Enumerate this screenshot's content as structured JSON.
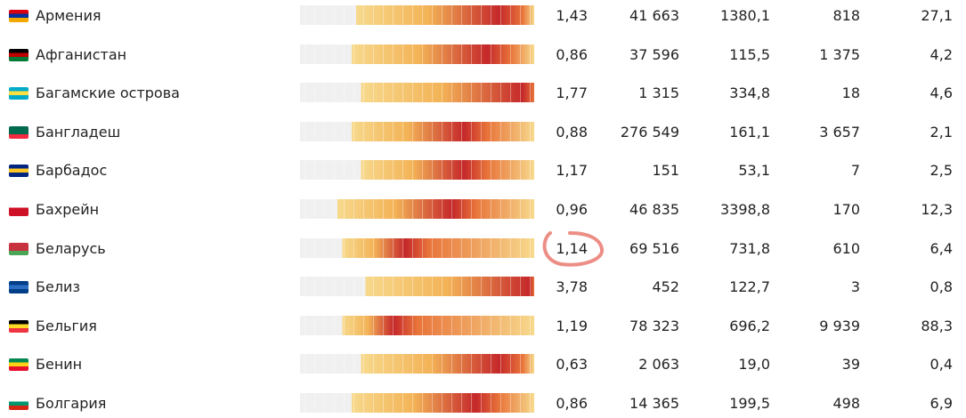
{
  "table": {
    "rows": [
      [
        "Армения",
        "1,43",
        "41 663",
        "1380,1",
        "818",
        "27,1"
      ],
      [
        "Афганистан",
        "0,86",
        "37 596",
        "115,5",
        "1 375",
        "4,2"
      ],
      [
        "Багамские острова",
        "1,77",
        "1 315",
        "334,8",
        "18",
        "4,6"
      ],
      [
        "Бангладеш",
        "0,88",
        "276 549",
        "161,1",
        "3 657",
        "2,1"
      ],
      [
        "Барбадос",
        "1,17",
        "151",
        "53,1",
        "7",
        "2,5"
      ],
      [
        "Бахрейн",
        "0,96",
        "46 835",
        "3398,8",
        "170",
        "12,3"
      ],
      [
        "Беларусь",
        "1,14",
        "69 516",
        "731,8",
        "610",
        "6,4"
      ],
      [
        "Белиз",
        "3,78",
        "452",
        "122,7",
        "3",
        "0,8"
      ],
      [
        "Бельгия",
        "1,19",
        "78 323",
        "696,2",
        "9 939",
        "88,3"
      ],
      [
        "Бенин",
        "0,63",
        "2 063",
        "19,0",
        "39",
        "0,4"
      ],
      [
        "Болгария",
        "0,86",
        "14 365",
        "199,5",
        "498",
        "6,9"
      ]
    ]
  }
}
